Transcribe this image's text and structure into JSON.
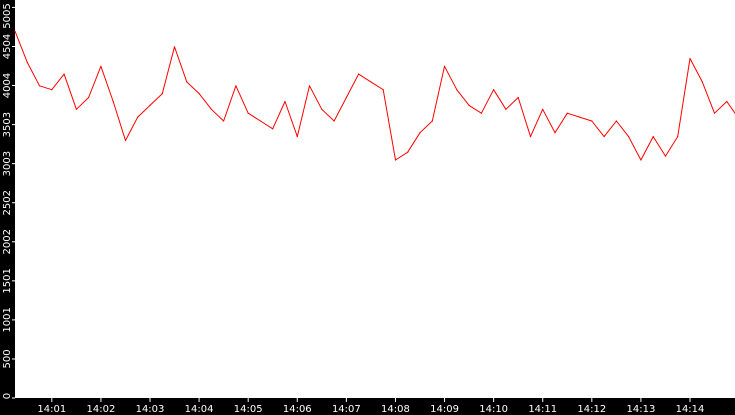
{
  "chart_data": {
    "type": "line",
    "title": "",
    "xlabel": "",
    "ylabel": "",
    "grid": false,
    "legend": "none",
    "ylim": [
      0,
      5100
    ],
    "xlim": [
      "14:00:15",
      "14:14:55"
    ],
    "y_tick_labels": [
      "0",
      "500",
      "1001",
      "1501",
      "2002",
      "2502",
      "3003",
      "3503",
      "4004",
      "4504",
      "5005"
    ],
    "y_tick_values": [
      0,
      500,
      1001,
      1501,
      2002,
      2502,
      3003,
      3503,
      4004,
      4504,
      5005
    ],
    "x_tick_labels": [
      "14:01",
      "14:02",
      "14:03",
      "14:04",
      "14:05",
      "14:06",
      "14:07",
      "14:08",
      "14:09",
      "14:10",
      "14:11",
      "14:12",
      "14:13",
      "14:14"
    ],
    "colors": {
      "background": "#000000",
      "plot_area": "#ffffff",
      "series": "#ff0000",
      "text": "#ffffff"
    },
    "series": [
      {
        "x": [
          "14:00:15",
          "14:00:30",
          "14:00:45",
          "14:01:00",
          "14:01:15",
          "14:01:30",
          "14:01:45",
          "14:02:00",
          "14:02:15",
          "14:02:30",
          "14:02:45",
          "14:03:00",
          "14:03:15",
          "14:03:30",
          "14:03:45",
          "14:04:00",
          "14:04:15",
          "14:04:30",
          "14:04:45",
          "14:05:00",
          "14:05:15",
          "14:05:30",
          "14:05:45",
          "14:06:00",
          "14:06:15",
          "14:06:30",
          "14:06:45",
          "14:07:00",
          "14:07:15",
          "14:07:30",
          "14:07:45",
          "14:08:00",
          "14:08:15",
          "14:08:30",
          "14:08:45",
          "14:09:00",
          "14:09:15",
          "14:09:30",
          "14:09:45",
          "14:10:00",
          "14:10:15",
          "14:10:30",
          "14:10:45",
          "14:11:00",
          "14:11:15",
          "14:11:30",
          "14:11:45",
          "14:12:00",
          "14:12:15",
          "14:12:30",
          "14:12:45",
          "14:13:00",
          "14:13:15",
          "14:13:30",
          "14:13:45",
          "14:14:00",
          "14:14:15",
          "14:14:30",
          "14:14:45",
          "14:14:55"
        ],
        "values": [
          4700,
          4300,
          4000,
          3950,
          4150,
          3700,
          3850,
          4250,
          3800,
          3300,
          3600,
          3750,
          3900,
          4500,
          4050,
          3900,
          3700,
          3550,
          4000,
          3650,
          3550,
          3450,
          3800,
          3350,
          4000,
          3700,
          3550,
          3850,
          4150,
          4050,
          3950,
          3050,
          3150,
          3400,
          3550,
          4250,
          3950,
          3750,
          3650,
          3950,
          3700,
          3850,
          3350,
          3700,
          3400,
          3650,
          3600,
          3550,
          3350,
          3550,
          3350,
          3050,
          3350,
          3100,
          3350,
          4350,
          4050,
          3650,
          3800,
          3650
        ]
      }
    ]
  }
}
